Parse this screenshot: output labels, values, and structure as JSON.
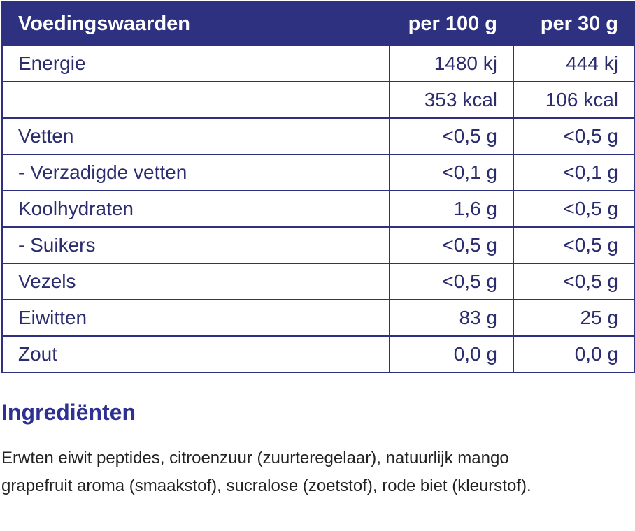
{
  "table": {
    "header": [
      "Voedingswaarden",
      "per 100 g",
      "per 30 g"
    ],
    "rows": [
      [
        "Energie",
        "1480 kj",
        "444 kj"
      ],
      [
        null,
        "353 kcal",
        "106 kcal"
      ],
      [
        "Vetten",
        "<0,5 g",
        "<0,5 g"
      ],
      [
        "- Verzadigde vetten",
        "<0,1 g",
        "<0,1 g"
      ],
      [
        "Koolhydraten",
        "1,6 g",
        "<0,5 g"
      ],
      [
        "- Suikers",
        "<0,5 g",
        "<0,5 g"
      ],
      [
        "Vezels",
        "<0,5 g",
        "<0,5 g"
      ],
      [
        "Eiwitten",
        "83 g",
        "25 g"
      ],
      [
        "Zout",
        "0,0 g",
        "0,0 g"
      ]
    ]
  },
  "ingredients": {
    "title": "Ingrediënten",
    "text": "Erwten eiwit peptides, citroenzuur (zuurteregelaar), natuurlijk mango grapefruit aroma (smaakstof), sucralose (zoetstof), rode biet (kleurstof)."
  }
}
